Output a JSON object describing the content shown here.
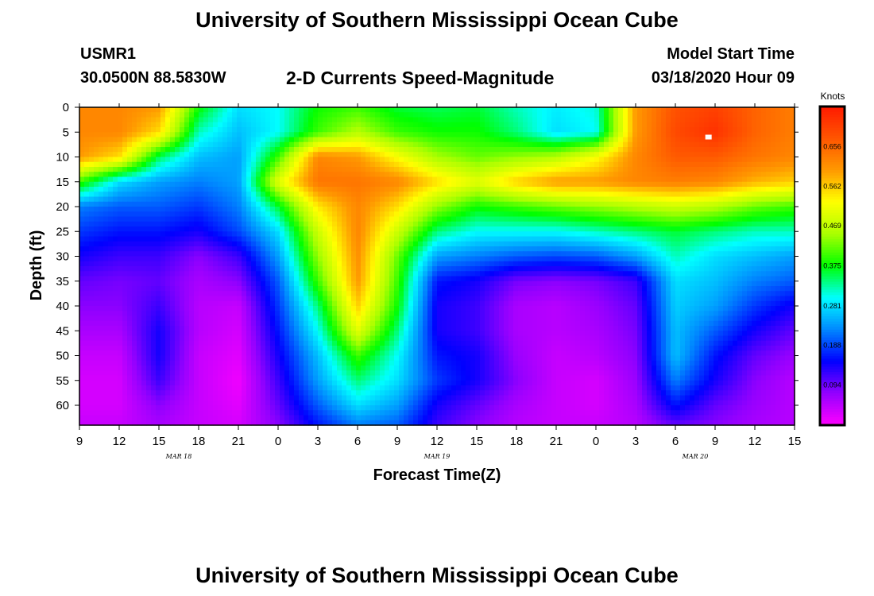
{
  "header": {
    "title": "University of Southern Mississippi Ocean Cube",
    "station": "USMR1",
    "coordinates": "30.0500N 88.5830W",
    "subtitle": "2-D Currents Speed-Magnitude",
    "start_label": "Model Start Time",
    "start_value": "03/18/2020 Hour 09"
  },
  "footer": {
    "title": "University of Southern Mississippi Ocean Cube"
  },
  "chart_data": {
    "type": "heatmap",
    "title": "2-D Currents Speed-Magnitude",
    "xlabel": "Forecast Time(Z)",
    "ylabel": "Depth (ft)",
    "xlim": [
      0,
      54
    ],
    "ylim": [
      0,
      64
    ],
    "y_inverted": true,
    "x_ticks": [
      {
        "h": 0,
        "label": "9"
      },
      {
        "h": 3,
        "label": "12"
      },
      {
        "h": 6,
        "label": "15"
      },
      {
        "h": 9,
        "label": "18"
      },
      {
        "h": 12,
        "label": "21"
      },
      {
        "h": 15,
        "label": "0"
      },
      {
        "h": 18,
        "label": "3"
      },
      {
        "h": 21,
        "label": "6"
      },
      {
        "h": 24,
        "label": "9"
      },
      {
        "h": 27,
        "label": "12"
      },
      {
        "h": 30,
        "label": "15"
      },
      {
        "h": 33,
        "label": "18"
      },
      {
        "h": 36,
        "label": "21"
      },
      {
        "h": 39,
        "label": "0"
      },
      {
        "h": 42,
        "label": "3"
      },
      {
        "h": 45,
        "label": "6"
      },
      {
        "h": 48,
        "label": "9"
      },
      {
        "h": 51,
        "label": "12"
      },
      {
        "h": 54,
        "label": "15"
      }
    ],
    "date_labels": [
      {
        "h": 7.5,
        "label": "MAR 18"
      },
      {
        "h": 27,
        "label": "MAR 19"
      },
      {
        "h": 46.5,
        "label": "MAR 20"
      }
    ],
    "y_ticks": [
      0,
      5,
      10,
      15,
      20,
      25,
      30,
      35,
      40,
      45,
      50,
      55,
      60
    ],
    "colorbar": {
      "label": "Knots",
      "range": [
        0,
        0.75
      ],
      "ticks": [
        "0.656",
        "0.562",
        "0.469",
        "0.375",
        "0.281",
        "0.188",
        "0.094"
      ],
      "tick_values": [
        0.656,
        0.562,
        0.469,
        0.375,
        0.281,
        0.188,
        0.094
      ]
    },
    "colors": {
      "scale": [
        "#ff00ff",
        "#9400ff",
        "#0000ff",
        "#0088ff",
        "#00ffff",
        "#00ff00",
        "#aaff00",
        "#ffff00",
        "#ff9900",
        "#ff5500",
        "#ff1a00"
      ]
    },
    "grid": false,
    "max_marker": {
      "h": 47.5,
      "depth": 6
    },
    "field": {
      "depths": [
        0,
        5,
        10,
        15,
        20,
        25,
        30,
        35,
        40,
        45,
        50,
        55,
        60,
        64
      ],
      "times": [
        0,
        3,
        6,
        9,
        12,
        15,
        18,
        21,
        24,
        27,
        30,
        33,
        36,
        39,
        42,
        45,
        48,
        51,
        54
      ],
      "values": [
        [
          0.62,
          0.62,
          0.6,
          0.38,
          0.28,
          0.3,
          0.38,
          0.4,
          0.36,
          0.35,
          0.36,
          0.32,
          0.29,
          0.31,
          0.6,
          0.68,
          0.7,
          0.66,
          0.63
        ],
        [
          0.62,
          0.62,
          0.55,
          0.32,
          0.26,
          0.3,
          0.4,
          0.46,
          0.4,
          0.38,
          0.38,
          0.34,
          0.28,
          0.3,
          0.6,
          0.69,
          0.72,
          0.66,
          0.63
        ],
        [
          0.6,
          0.55,
          0.35,
          0.26,
          0.24,
          0.4,
          0.62,
          0.6,
          0.52,
          0.45,
          0.42,
          0.44,
          0.46,
          0.52,
          0.62,
          0.67,
          0.67,
          0.64,
          0.62
        ],
        [
          0.4,
          0.28,
          0.24,
          0.22,
          0.24,
          0.5,
          0.64,
          0.64,
          0.62,
          0.55,
          0.5,
          0.56,
          0.6,
          0.6,
          0.62,
          0.63,
          0.62,
          0.58,
          0.56
        ],
        [
          0.22,
          0.2,
          0.2,
          0.18,
          0.22,
          0.36,
          0.54,
          0.62,
          0.55,
          0.44,
          0.38,
          0.4,
          0.42,
          0.44,
          0.46,
          0.48,
          0.46,
          0.42,
          0.4
        ],
        [
          0.18,
          0.16,
          0.16,
          0.14,
          0.19,
          0.28,
          0.48,
          0.62,
          0.48,
          0.34,
          0.3,
          0.3,
          0.3,
          0.32,
          0.34,
          0.36,
          0.34,
          0.32,
          0.32
        ],
        [
          0.14,
          0.12,
          0.12,
          0.08,
          0.12,
          0.24,
          0.44,
          0.61,
          0.42,
          0.24,
          0.22,
          0.2,
          0.19,
          0.2,
          0.24,
          0.32,
          0.28,
          0.26,
          0.24
        ],
        [
          0.1,
          0.09,
          0.1,
          0.06,
          0.08,
          0.2,
          0.4,
          0.6,
          0.4,
          0.16,
          0.14,
          0.09,
          0.08,
          0.09,
          0.12,
          0.28,
          0.26,
          0.22,
          0.2
        ],
        [
          0.08,
          0.08,
          0.12,
          0.05,
          0.04,
          0.18,
          0.34,
          0.56,
          0.38,
          0.14,
          0.12,
          0.06,
          0.05,
          0.07,
          0.1,
          0.27,
          0.24,
          0.18,
          0.14
        ],
        [
          0.06,
          0.06,
          0.14,
          0.05,
          0.03,
          0.16,
          0.3,
          0.5,
          0.34,
          0.14,
          0.12,
          0.06,
          0.05,
          0.06,
          0.09,
          0.26,
          0.2,
          0.14,
          0.1
        ],
        [
          0.04,
          0.04,
          0.14,
          0.04,
          0.02,
          0.14,
          0.26,
          0.4,
          0.3,
          0.16,
          0.14,
          0.07,
          0.04,
          0.05,
          0.08,
          0.26,
          0.16,
          0.1,
          0.07
        ],
        [
          0.03,
          0.03,
          0.12,
          0.04,
          0.01,
          0.12,
          0.24,
          0.34,
          0.28,
          0.18,
          0.14,
          0.08,
          0.04,
          0.03,
          0.07,
          0.22,
          0.14,
          0.08,
          0.05
        ],
        [
          0.03,
          0.03,
          0.08,
          0.04,
          0.02,
          0.1,
          0.2,
          0.28,
          0.24,
          0.14,
          0.1,
          0.06,
          0.04,
          0.03,
          0.06,
          0.16,
          0.1,
          0.07,
          0.05
        ],
        [
          0.04,
          0.04,
          0.06,
          0.04,
          0.03,
          0.08,
          0.16,
          0.22,
          0.2,
          0.12,
          0.08,
          0.05,
          0.04,
          0.04,
          0.05,
          0.1,
          0.08,
          0.06,
          0.05
        ]
      ]
    }
  }
}
